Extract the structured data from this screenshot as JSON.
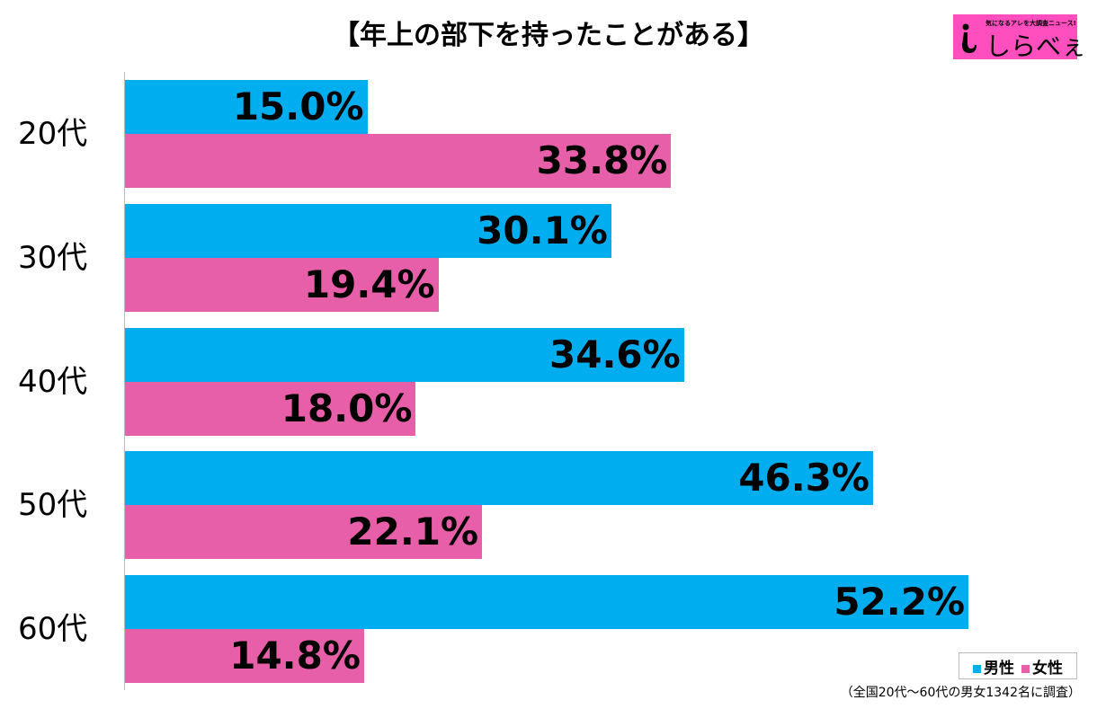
{
  "title": "【年上の部下を持ったことがある】",
  "logo": {
    "tagline": "気になるアレを大調査ニュース!",
    "name": "しらべぇ"
  },
  "legend": [
    "男性",
    "女性"
  ],
  "note": "（全国20代～60代の男女1342名に調査）",
  "colors": {
    "male": "#00aeef",
    "female": "#e75ea9"
  },
  "chart_data": {
    "type": "bar",
    "orientation": "horizontal",
    "title": "【年上の部下を持ったことがある】",
    "categories": [
      "20代",
      "30代",
      "40代",
      "50代",
      "60代"
    ],
    "series": [
      {
        "name": "男性",
        "values": [
          15.0,
          30.1,
          34.6,
          46.3,
          52.2
        ],
        "labels": [
          "15.0%",
          "30.1%",
          "34.6%",
          "46.3%",
          "52.2%"
        ]
      },
      {
        "name": "女性",
        "values": [
          33.8,
          19.4,
          18.0,
          22.1,
          14.8
        ],
        "labels": [
          "33.8%",
          "19.4%",
          "18.0%",
          "22.1%",
          "14.8%"
        ]
      }
    ],
    "unit": "%",
    "grid": false,
    "legend_position": "bottom-right"
  }
}
